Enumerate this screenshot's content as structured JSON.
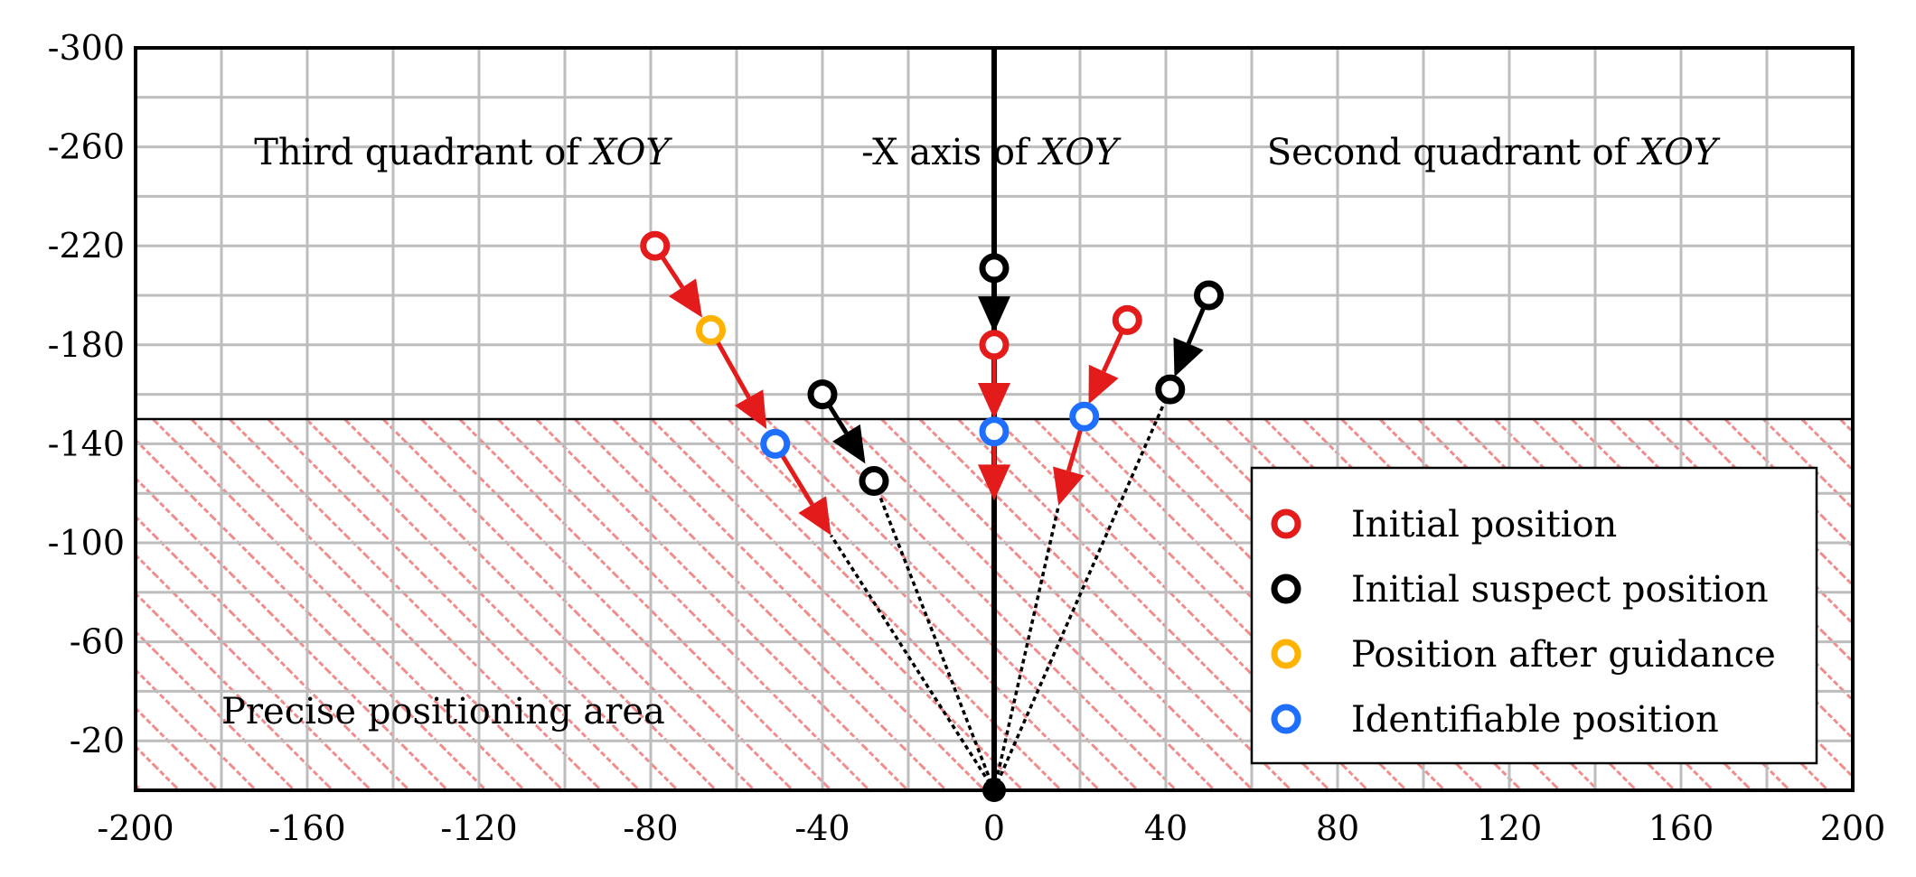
{
  "colors": {
    "red": "#e31b1b",
    "black": "#000000",
    "orange": "#ffb300",
    "blue": "#1e6fff",
    "hatch": "#f08c8c",
    "grid": "#bdbdbd"
  },
  "chart_data": {
    "type": "scatter",
    "title": "",
    "xlabel": "",
    "ylabel": "",
    "xlim": [
      -200,
      200
    ],
    "ylim": [
      -300,
      0
    ],
    "y_inverted": true,
    "grid": true,
    "x_ticks": [
      -200,
      -160,
      -120,
      -80,
      -40,
      0,
      40,
      80,
      120,
      160,
      200
    ],
    "y_ticks": [
      -300,
      -260,
      -220,
      -180,
      -140,
      -100,
      -60,
      -20
    ],
    "x_tick_labels": [
      "-200",
      "-160",
      "-120",
      "-80",
      "-40",
      "0",
      "40",
      "80",
      "120",
      "160",
      "200"
    ],
    "y_tick_labels": [
      "-300",
      "-260",
      "-220",
      "-180",
      "-140",
      "-100",
      "-60",
      "-20"
    ],
    "regions": {
      "left_label_text": "Third quadrant of ",
      "left_label_italic": "XOY",
      "center_label_text": "-X axis of ",
      "center_label_italic": "XOY",
      "right_label_text": "Second quadrant of ",
      "right_label_italic": "XOY",
      "area_label": "Precise positioning area"
    },
    "precise_area": {
      "x": [
        -200,
        200
      ],
      "y": [
        -150,
        0
      ]
    },
    "legend": {
      "placement": "bottom-right",
      "entries": [
        {
          "label": "Initial position",
          "color": "red"
        },
        {
          "label": "Initial suspect position",
          "color": "black"
        },
        {
          "label": "Position after guidance",
          "color": "orange"
        },
        {
          "label": "Identifiable position",
          "color": "blue"
        }
      ]
    },
    "series": [
      {
        "color": "red",
        "points": [
          [
            -79,
            -220
          ],
          [
            0,
            -180
          ],
          [
            31,
            -190
          ]
        ]
      },
      {
        "color": "black",
        "points": [
          [
            -40,
            -160
          ],
          [
            -28,
            -125
          ],
          [
            0,
            -211
          ],
          [
            50,
            -200
          ],
          [
            41,
            -162
          ]
        ]
      },
      {
        "color": "orange",
        "points": [
          [
            -66,
            -186
          ]
        ]
      },
      {
        "color": "blue",
        "points": [
          [
            -51,
            -140
          ],
          [
            0,
            -145
          ],
          [
            21,
            -151
          ]
        ]
      }
    ],
    "origin_point": [
      0,
      0
    ],
    "arrows": [
      {
        "color": "red",
        "from": [
          -79,
          -220
        ],
        "to": [
          -68,
          -191
        ]
      },
      {
        "color": "red",
        "from": [
          -66,
          -186
        ],
        "to": [
          -53,
          -146
        ]
      },
      {
        "color": "red",
        "from": [
          -51,
          -140
        ],
        "to": [
          -38,
          -103
        ]
      },
      {
        "color": "red",
        "from": [
          0,
          -180
        ],
        "to": [
          0,
          -150
        ]
      },
      {
        "color": "red",
        "from": [
          0,
          -145
        ],
        "to": [
          0,
          -117
        ]
      },
      {
        "color": "red",
        "from": [
          31,
          -190
        ],
        "to": [
          22,
          -156
        ]
      },
      {
        "color": "red",
        "from": [
          21,
          -151
        ],
        "to": [
          15,
          -115
        ]
      },
      {
        "color": "black",
        "from": [
          0,
          -211
        ],
        "to": [
          0,
          -185
        ]
      },
      {
        "color": "black",
        "from": [
          -40,
          -160
        ],
        "to": [
          -30,
          -132
        ]
      },
      {
        "color": "black",
        "from": [
          50,
          -200
        ],
        "to": [
          42,
          -167
        ]
      }
    ],
    "dotted_lines": [
      {
        "from": [
          0,
          0
        ],
        "to": [
          -38,
          -103
        ]
      },
      {
        "from": [
          0,
          0
        ],
        "to": [
          -28,
          -125
        ]
      },
      {
        "from": [
          0,
          0
        ],
        "to": [
          15,
          -115
        ]
      },
      {
        "from": [
          0,
          0
        ],
        "to": [
          41,
          -162
        ]
      }
    ]
  }
}
